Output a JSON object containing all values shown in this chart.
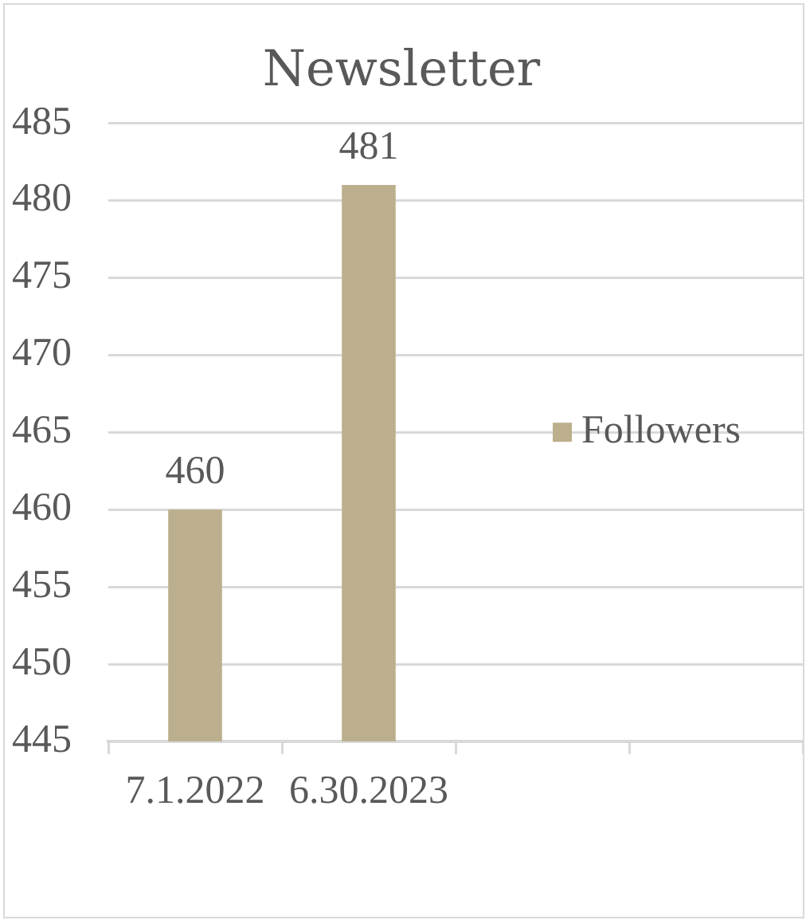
{
  "chart_data": {
    "type": "bar",
    "title": "Newsletter",
    "categories": [
      "7.1.2022",
      "6.30.2023",
      null,
      null
    ],
    "series": [
      {
        "name": "Followers",
        "color": "#bcaf8d",
        "values": [
          460,
          481,
          null,
          null
        ]
      }
    ],
    "ylim": [
      445,
      485
    ],
    "yticks": [
      445,
      450,
      455,
      460,
      465,
      470,
      475,
      480,
      485
    ],
    "grid": "y",
    "legend": "right",
    "data_labels": true
  }
}
